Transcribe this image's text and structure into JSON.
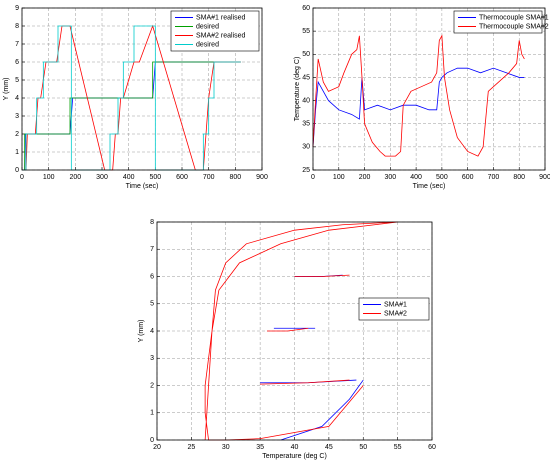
{
  "chart_data": [
    {
      "type": "line",
      "xlabel": "Time (sec)",
      "ylabel": "Y (mm)",
      "xlim": [
        0,
        900
      ],
      "ylim": [
        0,
        9
      ],
      "xticks": [
        0,
        100,
        200,
        300,
        400,
        500,
        600,
        700,
        800,
        900
      ],
      "yticks": [
        0,
        1,
        2,
        3,
        4,
        5,
        6,
        7,
        8,
        9
      ],
      "grid": true,
      "legend": "upper right",
      "series": [
        {
          "name": "SMA#1 realised",
          "color": "#0000ff",
          "x": [
            0,
            10,
            12,
            180,
            185,
            190,
            490,
            495,
            500,
            820
          ],
          "values": [
            0,
            0,
            2,
            2,
            3,
            4,
            4,
            5,
            6,
            6
          ]
        },
        {
          "name": "desired",
          "color": "#00a000",
          "x": [
            0,
            10,
            10,
            180,
            180,
            490,
            490,
            820
          ],
          "values": [
            0,
            0,
            2,
            2,
            4,
            4,
            6,
            6
          ]
        },
        {
          "name": "SMA#2 realised",
          "color": "#ff0000",
          "x": [
            0,
            15,
            20,
            50,
            60,
            70,
            90,
            130,
            150,
            180,
            310,
            340,
            350,
            360,
            370,
            380,
            420,
            440,
            490,
            650,
            680,
            690,
            700,
            720,
            820
          ],
          "values": [
            0,
            0,
            2,
            2,
            4,
            4,
            6,
            6,
            8,
            8,
            0,
            0,
            2,
            2,
            4,
            4,
            6,
            6,
            8,
            0,
            0,
            2,
            4,
            6,
            6
          ]
        },
        {
          "name": "desired",
          "color": "#00cccc",
          "x": [
            0,
            15,
            15,
            55,
            55,
            80,
            80,
            135,
            135,
            185,
            185,
            330,
            330,
            360,
            360,
            380,
            380,
            420,
            420,
            500,
            500,
            680,
            680,
            700,
            700,
            720,
            720,
            820
          ],
          "values": [
            0,
            0,
            2,
            2,
            4,
            4,
            6,
            6,
            8,
            8,
            0,
            0,
            2,
            2,
            4,
            4,
            6,
            6,
            8,
            8,
            0,
            0,
            2,
            2,
            4,
            4,
            6,
            6
          ]
        }
      ]
    },
    {
      "type": "line",
      "xlabel": "Time (sec)",
      "ylabel": "Temperature (deg C)",
      "xlim": [
        0,
        900
      ],
      "ylim": [
        25,
        60
      ],
      "xticks": [
        0,
        100,
        200,
        300,
        400,
        500,
        600,
        700,
        800,
        900
      ],
      "yticks": [
        25,
        30,
        35,
        40,
        45,
        50,
        55,
        60
      ],
      "grid": true,
      "legend": "upper right",
      "series": [
        {
          "name": "Thermocouple SMA#1",
          "color": "#0000ff",
          "x": [
            0,
            10,
            20,
            60,
            100,
            150,
            180,
            190,
            200,
            250,
            300,
            350,
            400,
            450,
            480,
            490,
            500,
            520,
            560,
            600,
            650,
            700,
            750,
            800,
            820
          ],
          "values": [
            30,
            38,
            44,
            40,
            38,
            37,
            36,
            45,
            38,
            39,
            38,
            39,
            39,
            38,
            38,
            44,
            45,
            46,
            47,
            47,
            46,
            47,
            46,
            45,
            45
          ]
        },
        {
          "name": "Thermocouple SMA#2",
          "color": "#ff0000",
          "x": [
            0,
            10,
            20,
            40,
            60,
            100,
            120,
            150,
            170,
            180,
            190,
            200,
            230,
            260,
            280,
            320,
            340,
            350,
            380,
            420,
            460,
            480,
            490,
            500,
            510,
            530,
            560,
            600,
            640,
            660,
            670,
            680,
            720,
            760,
            790,
            800,
            810,
            820
          ],
          "values": [
            30,
            40,
            49,
            44,
            42,
            43,
            46,
            50,
            51,
            54,
            45,
            35,
            31,
            29,
            28,
            28,
            29,
            39,
            42,
            43,
            44,
            46,
            53,
            54,
            45,
            38,
            32,
            29,
            28,
            30,
            36,
            42,
            44,
            46,
            48,
            53,
            50,
            49
          ]
        }
      ]
    },
    {
      "type": "line",
      "xlabel": "Temperature (deg C)",
      "ylabel": "Y (mm)",
      "xlim": [
        20,
        60
      ],
      "ylim": [
        0,
        8
      ],
      "xticks": [
        20,
        25,
        30,
        35,
        40,
        45,
        50,
        55,
        60
      ],
      "yticks": [
        0,
        1,
        2,
        3,
        4,
        5,
        6,
        7,
        8
      ],
      "grid": true,
      "legend": "right",
      "series": [
        {
          "name": "SMA#1",
          "color": "#0000ff",
          "x": [
            40,
            44,
            47,
            null,
            37,
            40,
            43,
            null,
            35,
            42,
            49,
            null,
            38,
            44,
            48,
            50
          ],
          "values": [
            6,
            6,
            6.05,
            null,
            4.1,
            4.1,
            4.1,
            null,
            2.1,
            2.1,
            2.2,
            null,
            0,
            0.5,
            1.5,
            2.2
          ]
        },
        {
          "name": "SMA#2",
          "color": "#ff0000",
          "x": [
            27,
            27.5,
            28,
            28.5,
            30,
            33,
            40,
            47,
            55,
            45,
            38,
            32,
            29,
            28,
            27.5,
            27,
            27,
            27.5,
            30,
            35,
            45,
            50,
            null,
            40,
            44,
            48,
            null,
            36,
            39,
            42,
            null,
            35,
            42,
            48
          ],
          "values": [
            0,
            2,
            4,
            5.5,
            6.5,
            7.2,
            7.7,
            7.9,
            8,
            7.7,
            7.2,
            6.5,
            5.5,
            4,
            3,
            2,
            1,
            0,
            0,
            0.05,
            0.5,
            2,
            null,
            6,
            6,
            6.05,
            null,
            4,
            4,
            4.1,
            null,
            2.05,
            2.1,
            2.2
          ]
        }
      ]
    }
  ]
}
